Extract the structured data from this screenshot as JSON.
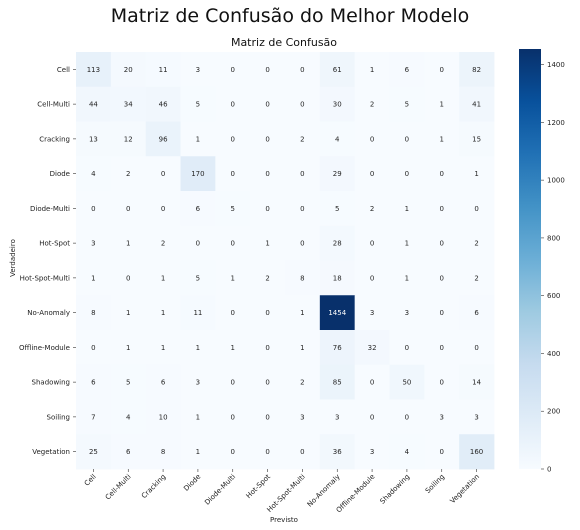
{
  "figure": {
    "suptitle": "Matriz de Confusão do Melhor Modelo"
  },
  "chart_data": {
    "type": "heatmap",
    "title": "Matriz de Confusão",
    "xlabel": "Previsto",
    "ylabel": "Verdadeiro",
    "categories": [
      "Cell",
      "Cell-Multi",
      "Cracking",
      "Diode",
      "Diode-Multi",
      "Hot-Spot",
      "Hot-Spot-Multi",
      "No-Anomaly",
      "Offline-Module",
      "Shadowing",
      "Soiling",
      "Vegetation"
    ],
    "values": [
      [
        113,
        20,
        11,
        3,
        0,
        0,
        0,
        61,
        1,
        6,
        0,
        82
      ],
      [
        44,
        34,
        46,
        5,
        0,
        0,
        0,
        30,
        2,
        5,
        1,
        41
      ],
      [
        13,
        12,
        96,
        1,
        0,
        0,
        2,
        4,
        0,
        0,
        1,
        15
      ],
      [
        4,
        2,
        0,
        170,
        0,
        0,
        0,
        29,
        0,
        0,
        0,
        1
      ],
      [
        0,
        0,
        0,
        6,
        5,
        0,
        0,
        5,
        2,
        1,
        0,
        0
      ],
      [
        3,
        1,
        2,
        0,
        0,
        1,
        0,
        28,
        0,
        1,
        0,
        2
      ],
      [
        1,
        0,
        1,
        5,
        1,
        2,
        8,
        18,
        0,
        1,
        0,
        2
      ],
      [
        8,
        1,
        1,
        11,
        0,
        0,
        1,
        1454,
        3,
        3,
        0,
        6
      ],
      [
        0,
        1,
        1,
        1,
        1,
        0,
        1,
        76,
        32,
        0,
        0,
        0
      ],
      [
        6,
        5,
        6,
        3,
        0,
        0,
        2,
        85,
        0,
        50,
        0,
        14
      ],
      [
        7,
        4,
        10,
        1,
        0,
        0,
        3,
        3,
        0,
        0,
        3,
        3
      ],
      [
        25,
        6,
        8,
        1,
        0,
        0,
        0,
        36,
        3,
        4,
        0,
        160
      ]
    ],
    "colorbar": {
      "min": 0,
      "max": 1454,
      "ticks": [
        0,
        200,
        400,
        600,
        800,
        1000,
        1200,
        1400
      ],
      "colormap": "Blues"
    }
  }
}
